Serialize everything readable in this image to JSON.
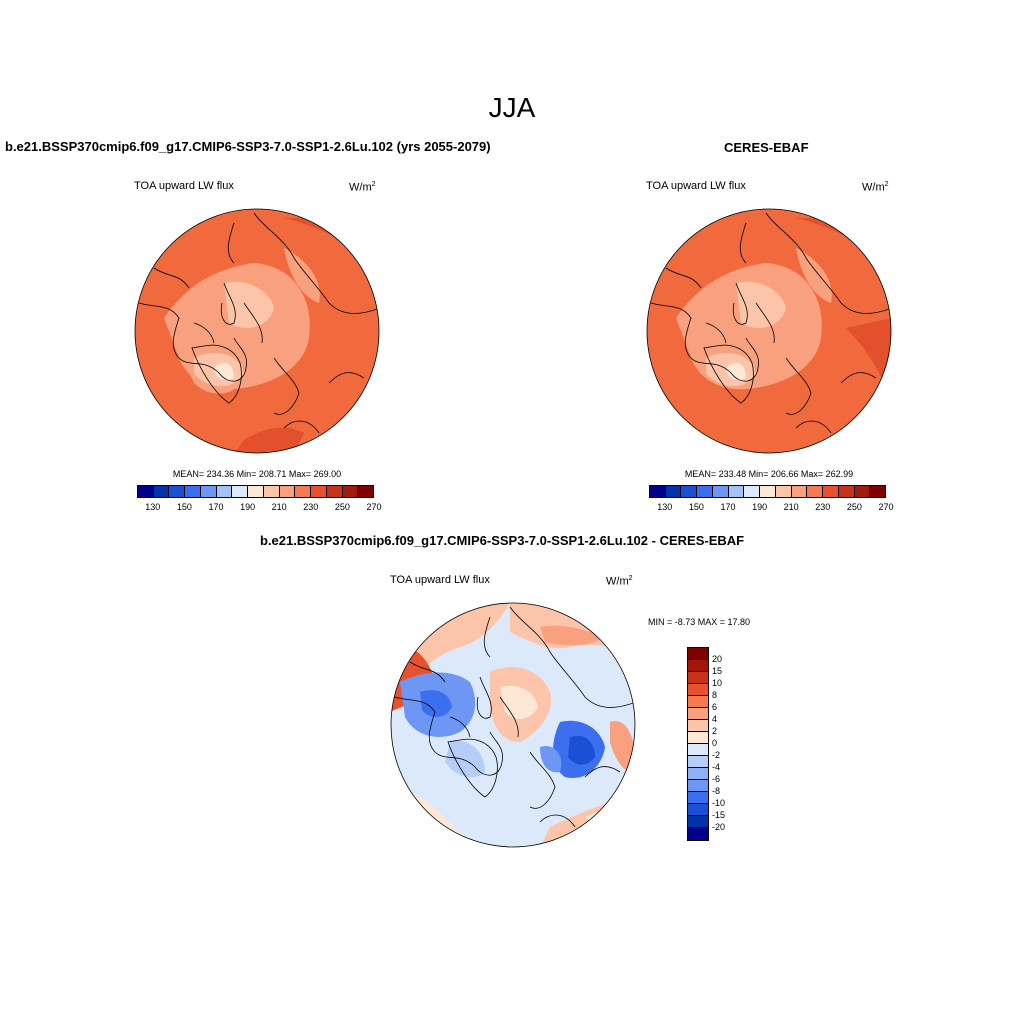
{
  "main_title": "JJA",
  "panels": [
    {
      "title": "b.e21.BSSP370cmip6.f09_g17.CMIP6-SSP3-7.0-SSP1-2.6Lu.102 (yrs 2055-2079)",
      "variable": "TOA upward LW flux",
      "units": "W/m",
      "units_exp": "2",
      "stats": "MEAN= 234.36  Min= 208.71  Max= 269.00"
    },
    {
      "title": "CERES-EBAF",
      "variable": "TOA upward LW flux",
      "units": "W/m",
      "units_exp": "2",
      "stats": "MEAN= 233.48  Min= 206.66  Max= 262.99"
    },
    {
      "title": "b.e21.BSSP370cmip6.f09_g17.CMIP6-SSP3-7.0-SSP1-2.6Lu.102 - CERES-EBAF",
      "variable": "TOA upward LW flux",
      "units": "W/m",
      "units_exp": "2",
      "stats": "MIN =  -8.73 MAX =  17.80"
    }
  ],
  "abs_colorbar": {
    "colors": [
      "#00008b",
      "#0033aa",
      "#1a4fd6",
      "#3b6ff0",
      "#6d96f5",
      "#a5c3f8",
      "#dbe9fb",
      "#fde7d5",
      "#fcc5aa",
      "#f9a17e",
      "#f47a51",
      "#e8512d",
      "#c9321a",
      "#a11a0c",
      "#7f0000"
    ],
    "tick_labels": [
      "130",
      "150",
      "170",
      "190",
      "210",
      "230",
      "250",
      "270"
    ]
  },
  "diff_colorbar": {
    "colors": [
      "#7f0000",
      "#a5150a",
      "#c9321a",
      "#e8512d",
      "#f47a51",
      "#f9a17e",
      "#fcc5aa",
      "#fde7d5",
      "#dbe9fb",
      "#b5cdf8",
      "#8fb0f6",
      "#6d96f5",
      "#3b6ff0",
      "#1a4fd6",
      "#0033aa",
      "#00008b"
    ],
    "tick_labels": [
      "20",
      "15",
      "10",
      "8",
      "6",
      "4",
      "2",
      "0",
      "-2",
      "-4",
      "-6",
      "-8",
      "-10",
      "-15",
      "-20"
    ]
  },
  "map_colors": {
    "ocean": "#f06a3e",
    "warm": "#e2502c",
    "land": "#f9a17e",
    "pale": "#fcc5aa",
    "ice": "#fde7d5",
    "diff_base": "#dbe9fb",
    "diff_pos1": "#fde7d5",
    "diff_pos2": "#fcc5aa",
    "diff_pos3": "#f9a17e",
    "diff_pos4": "#e8512d",
    "diff_neg1": "#b5cdf8",
    "diff_neg2": "#6d96f5",
    "diff_neg3": "#3b6ff0"
  }
}
